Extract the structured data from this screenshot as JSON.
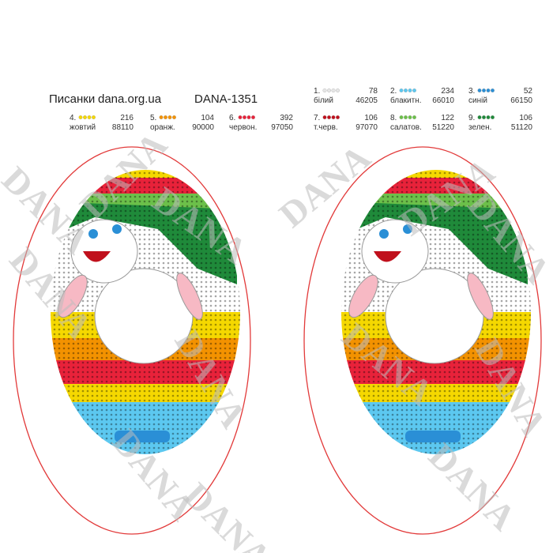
{
  "header": {
    "title": "Писанки",
    "site": "dana.org.ua",
    "code": "DANA-1351"
  },
  "watermark": "DANA",
  "legend": [
    {
      "number": "1.",
      "name": "білий",
      "count": 78,
      "code": 46205,
      "color": "#e6e6e6"
    },
    {
      "number": "2.",
      "name": "блакитн.",
      "count": 234,
      "code": 66010,
      "color": "#5cc8f0"
    },
    {
      "number": "3.",
      "name": "синій",
      "count": 52,
      "code": 66150,
      "color": "#2a8fd6"
    },
    {
      "number": "4.",
      "name": "жовтий",
      "count": 216,
      "code": 88110,
      "color": "#f5d800"
    },
    {
      "number": "5.",
      "name": "оранж.",
      "count": 104,
      "code": 90000,
      "color": "#f39200"
    },
    {
      "number": "6.",
      "name": "червон.",
      "count": 392,
      "code": 97050,
      "color": "#e8223a"
    },
    {
      "number": "7.",
      "name": "т.черв.",
      "count": 106,
      "code": 97070,
      "color": "#c0101c"
    },
    {
      "number": "8.",
      "name": "салатов.",
      "count": 122,
      "code": 51220,
      "color": "#6cc04a"
    },
    {
      "number": "9.",
      "name": "зелен.",
      "count": 106,
      "code": 51120,
      "color": "#1f8a3a"
    }
  ]
}
